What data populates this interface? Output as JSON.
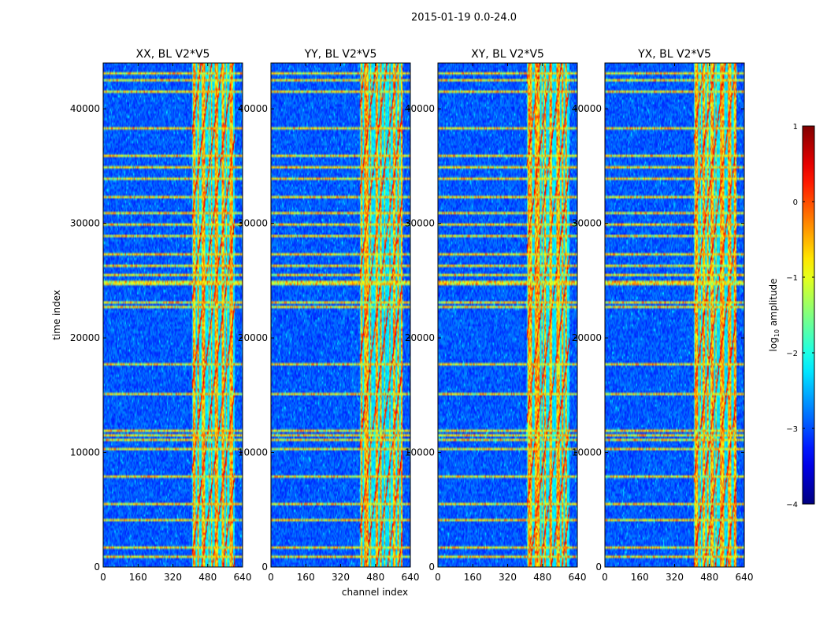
{
  "figure": {
    "suptitle": "2015-01-19 0.0-24.0",
    "xlabel": "channel index",
    "ylabel": "time index"
  },
  "chart_data": {
    "type": "heatmap",
    "title": "2015-01-19 0.0-24.0",
    "xlabel": "channel index",
    "ylabel": "time index",
    "xlim": [
      0,
      640
    ],
    "ylim": [
      0,
      44000
    ],
    "xticks": [
      0,
      160,
      320,
      480,
      640
    ],
    "yticks": [
      0,
      10000,
      20000,
      30000,
      40000
    ],
    "panels": [
      {
        "title": "XX, BL V2*V5",
        "polarization": "XX"
      },
      {
        "title": "YY, BL V2*V5",
        "polarization": "YY"
      },
      {
        "title": "XY, BL V2*V5",
        "polarization": "XY"
      },
      {
        "title": "YX, BL V2*V5",
        "polarization": "YX"
      }
    ],
    "signal_band": {
      "channel_start": 405,
      "channel_end": 600
    },
    "rfi_time_rows": [
      1000,
      1800,
      4300,
      5600,
      8000,
      10500,
      11300,
      11700,
      12000,
      15300,
      17900,
      22800,
      23300,
      24700,
      25000,
      25500,
      26500,
      27500,
      29000,
      30000,
      31000,
      32500,
      34000,
      35000,
      36100,
      38500,
      41500,
      42500,
      43200
    ],
    "colorbar": {
      "label": "log10 amplitude",
      "label_base": "log",
      "label_sub": "10",
      "label_rest": " amplitude",
      "vmin": -4,
      "vmax": 1,
      "ticks": [
        -4,
        -3,
        -2,
        -1,
        0,
        1
      ],
      "tick_labels": [
        "−4",
        "−3",
        "−2",
        "−1",
        "0",
        "1"
      ],
      "colormap": "jet"
    }
  }
}
